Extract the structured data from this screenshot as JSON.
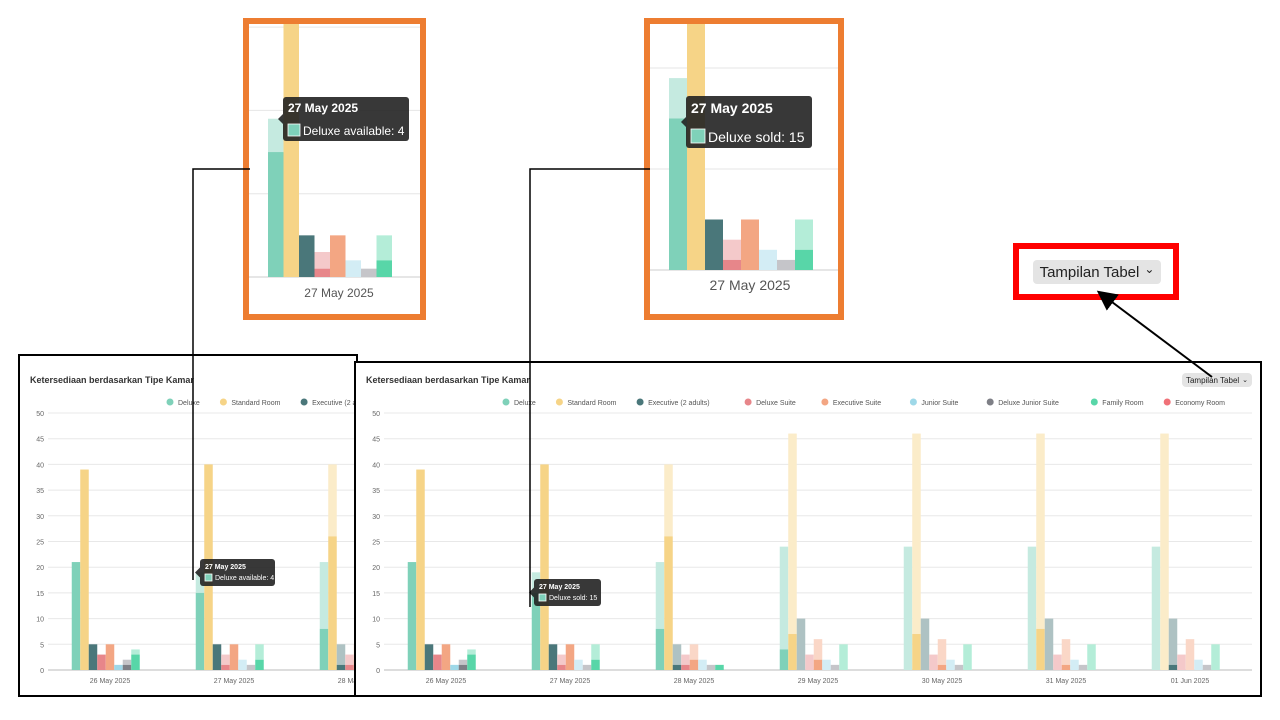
{
  "chart_data": {
    "type": "bar",
    "title": "Ketersediaan berdasarkan Tipe Kamar",
    "categories": [
      "26 May 2025",
      "27 May 2025",
      "28 May 2025",
      "29 May 2025",
      "30 May 2025",
      "31 May 2025",
      "01 Jun 2025"
    ],
    "ylim": [
      0,
      50
    ],
    "yticks": [
      0,
      5,
      10,
      15,
      20,
      25,
      30,
      35,
      40,
      45,
      50
    ],
    "grid": true,
    "legend_position": "top",
    "series": [
      {
        "name": "Deluxe",
        "color": "#7fd1b9",
        "sold": [
          21,
          15,
          8,
          4,
          0,
          0,
          0
        ],
        "total": [
          21,
          19,
          21,
          24,
          24,
          24,
          24
        ]
      },
      {
        "name": "Standard Room",
        "color": "#f6d487",
        "sold": [
          39,
          40,
          26,
          7,
          7,
          8,
          0
        ],
        "total": [
          39,
          40,
          40,
          46,
          46,
          46,
          46
        ]
      },
      {
        "name": "Executive (2 adults)",
        "color": "#4a777a",
        "sold": [
          5,
          5,
          1,
          0,
          0,
          0,
          1
        ],
        "total": [
          5,
          5,
          5,
          10,
          10,
          10,
          10
        ]
      },
      {
        "name": "Deluxe Suite",
        "color": "#e7868a",
        "sold": [
          3,
          1,
          1,
          0,
          0,
          0,
          0
        ],
        "total": [
          3,
          3,
          3,
          3,
          3,
          3,
          3
        ]
      },
      {
        "name": "Executive Suite",
        "color": "#f3a683",
        "sold": [
          5,
          5,
          2,
          2,
          1,
          1,
          0
        ],
        "total": [
          5,
          5,
          5,
          6,
          6,
          6,
          6
        ]
      },
      {
        "name": "Junior Suite",
        "color": "#9ed8e8",
        "sold": [
          1,
          0,
          0,
          0,
          0,
          0,
          0
        ],
        "total": [
          1,
          2,
          2,
          2,
          2,
          2,
          2
        ]
      },
      {
        "name": "Deluxe Junior Suite",
        "color": "#7e7f86",
        "sold": [
          1,
          0,
          0,
          0,
          0,
          0,
          0
        ],
        "total": [
          2,
          1,
          1,
          1,
          1,
          1,
          1
        ]
      },
      {
        "name": "Family Room",
        "color": "#58d6a8",
        "sold": [
          3,
          2,
          1,
          0,
          0,
          0,
          0
        ],
        "total": [
          4,
          5,
          1,
          5,
          5,
          5,
          5
        ]
      },
      {
        "name": "Economy Room",
        "color": "#f07178",
        "sold": [
          0,
          0,
          0,
          0,
          0,
          0,
          0
        ],
        "total": [
          0,
          0,
          0,
          0,
          0,
          0,
          0
        ]
      }
    ]
  },
  "tooltip_available": {
    "date": "27 May 2025",
    "series": "Deluxe",
    "label": "available",
    "value": "4"
  },
  "tooltip_sold": {
    "date": "27 May 2025",
    "series": "Deluxe",
    "label": "sold",
    "value": "15"
  },
  "table_view_button": {
    "label": "Tampilan Tabel"
  },
  "zoom_date_label": "27 May 2025",
  "colors": {
    "zoom_frame": "#ED7D31",
    "highlight_frame": "#FF0000",
    "panel_frame": "#000000"
  }
}
